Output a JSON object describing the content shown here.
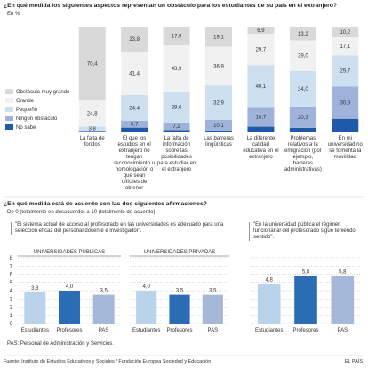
{
  "chart_data": [
    {
      "type": "stacked_bar",
      "title": "¿En qué medida los siguientes aspectos representan un obstáculo para los estudiantes de su país en el extranjero?",
      "subtitle": "En %",
      "categories": [
        "La falta de fondos",
        "El que los estudios en el extranjero no tengan reconocimiento u homologación o que sean difíciles de obtener",
        "La falta de información sobre las posibilidades para estudiar en el extranjero",
        "Las barreras lingüísticas",
        "La diferente calidad educativa en el extranjero",
        "Problemas relativos a la emigración (por ejemplo, barreras administrativas)",
        "En mi universidad no se fomenta la movilidad"
      ],
      "series": [
        {
          "name": "No sabe",
          "color": "#1e5aa8",
          "values": [
            0.4,
            3.7,
            1.4,
            1.0,
            4.6,
            3.5,
            12.1
          ],
          "value_labels": [
            null,
            null,
            null,
            null,
            null,
            null,
            null
          ]
        },
        {
          "name": "Ningún obstáculo",
          "color": "#9fb3da",
          "values": [
            0.6,
            6.7,
            7.2,
            10.1,
            18.7,
            20.3,
            30.9
          ],
          "value_labels": [
            null,
            "6,7",
            "7,2",
            "10,1",
            "18,7",
            "20,3",
            "30,9"
          ]
        },
        {
          "name": "Pequeño",
          "color": "#cde0f0",
          "values": [
            3.8,
            24.4,
            29.6,
            32.9,
            40.1,
            34.0,
            29.7
          ],
          "value_labels": [
            "3,8",
            "24,4",
            "29,6",
            "32,9",
            "40,1",
            "34,0",
            "29,7"
          ]
        },
        {
          "name": "Grande",
          "color": "#f1f1f1",
          "values": [
            24.8,
            41.4,
            43.9,
            36.9,
            29.7,
            29.0,
            17.1
          ],
          "value_labels": [
            "24,8",
            "41,4",
            "43,9",
            "36,9",
            "29,7",
            "29,0",
            "17,1"
          ]
        },
        {
          "name": "Obstáculo muy grande",
          "color": "#d9d9d9",
          "values": [
            70.4,
            23.8,
            17.9,
            19.1,
            6.9,
            13.2,
            10.2
          ],
          "value_labels": [
            "70,4",
            "23,8",
            "17,9",
            "19,1",
            "6,9",
            "13,2",
            "10,2"
          ]
        }
      ]
    },
    {
      "type": "bar",
      "title": "UNIVERSIDADES PÚBLICAS",
      "categories": [
        "Estudiantes",
        "Profesores",
        "PAS"
      ],
      "values": [
        3.8,
        4.0,
        3.5
      ],
      "value_labels": [
        "3,8",
        "4,0",
        "3,5"
      ],
      "colors": [
        "#b9d3ea",
        "#2a6db4",
        "#a6b8d8"
      ],
      "ylim": [
        0,
        8
      ],
      "yticks": [
        0,
        1,
        2,
        3,
        4,
        5,
        6,
        7,
        8
      ],
      "grid": true
    },
    {
      "type": "bar",
      "title": "UNIVERSIDADES PRIVADAS",
      "categories": [
        "Estudiantes",
        "Profesores",
        "PAS"
      ],
      "values": [
        4.0,
        3.5,
        3.5
      ],
      "value_labels": [
        "4,0",
        "3,5",
        "3,5"
      ],
      "colors": [
        "#b9d3ea",
        "#2a6db4",
        "#a6b8d8"
      ],
      "ylim": [
        0,
        8
      ],
      "yticks": [
        0,
        1,
        2,
        3,
        4,
        5,
        6,
        7,
        8
      ],
      "grid": true
    },
    {
      "type": "bar",
      "categories": [
        "Estudiantes",
        "Profesores",
        "PAS"
      ],
      "values": [
        4.8,
        5.8,
        5.8
      ],
      "value_labels": [
        "4,8",
        "5,8",
        "5,8"
      ],
      "colors": [
        "#b9d3ea",
        "#2a6db4",
        "#a6b8d8"
      ],
      "ylim": [
        0,
        8
      ],
      "yticks": [
        0,
        1,
        2,
        3,
        4,
        5,
        6,
        7,
        8
      ],
      "grid": true
    }
  ],
  "section2": {
    "title": "¿En qué medida está de acuerdo con las dos siguientes afirmaciones?",
    "subtitle": "De 0 (totalmente en desacuerdo) a 10 (totalmente de acuerdo)",
    "quotes": [
      "\"El sistema actual de acceso al profesorado en las universidades es adecuado para una selección eficaz del personal docente e investigador\".",
      "\"En la universidad pública el régimen funcionarial del profesorado sigue teniendo sentido\"."
    ]
  },
  "note": "PAS: Personal de Administración y Servicios.",
  "source": "Fuente: Instituto de Estudios Educativos y Sociales / Fundación Europea Sociedad y Educación",
  "brand": "EL PAÍS"
}
